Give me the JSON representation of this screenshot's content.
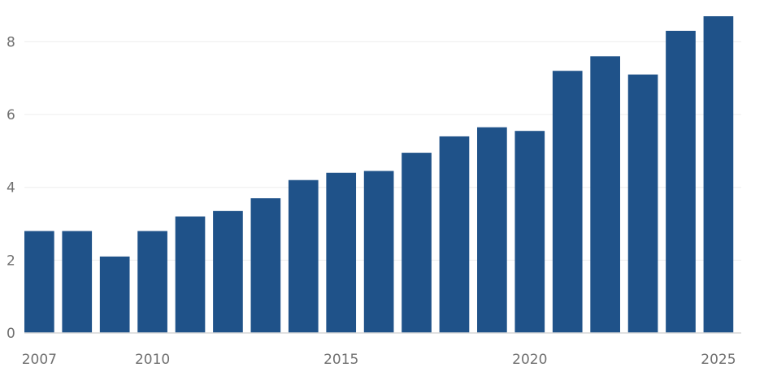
{
  "chart_data": {
    "type": "bar",
    "categories": [
      "2007",
      "2008",
      "2009",
      "2010",
      "2011",
      "2012",
      "2013",
      "2014",
      "2015",
      "2016",
      "2017",
      "2018",
      "2019",
      "2020",
      "2021",
      "2022",
      "2023",
      "2024",
      "2025"
    ],
    "values": [
      2.8,
      2.8,
      2.1,
      2.8,
      3.2,
      3.35,
      3.7,
      4.2,
      4.4,
      4.45,
      4.95,
      5.4,
      5.65,
      5.55,
      7.2,
      7.6,
      7.1,
      8.3,
      8.7
    ],
    "title": "",
    "xlabel": "",
    "ylabel": "",
    "ylim": [
      0,
      8.7
    ],
    "yticks": [
      0,
      2,
      4,
      6,
      8
    ],
    "xtick_labels": [
      "2007",
      "2010",
      "2015",
      "2020",
      "2025"
    ],
    "grid": "horizontal",
    "bar_color": "#1f5289",
    "legend": "none"
  }
}
